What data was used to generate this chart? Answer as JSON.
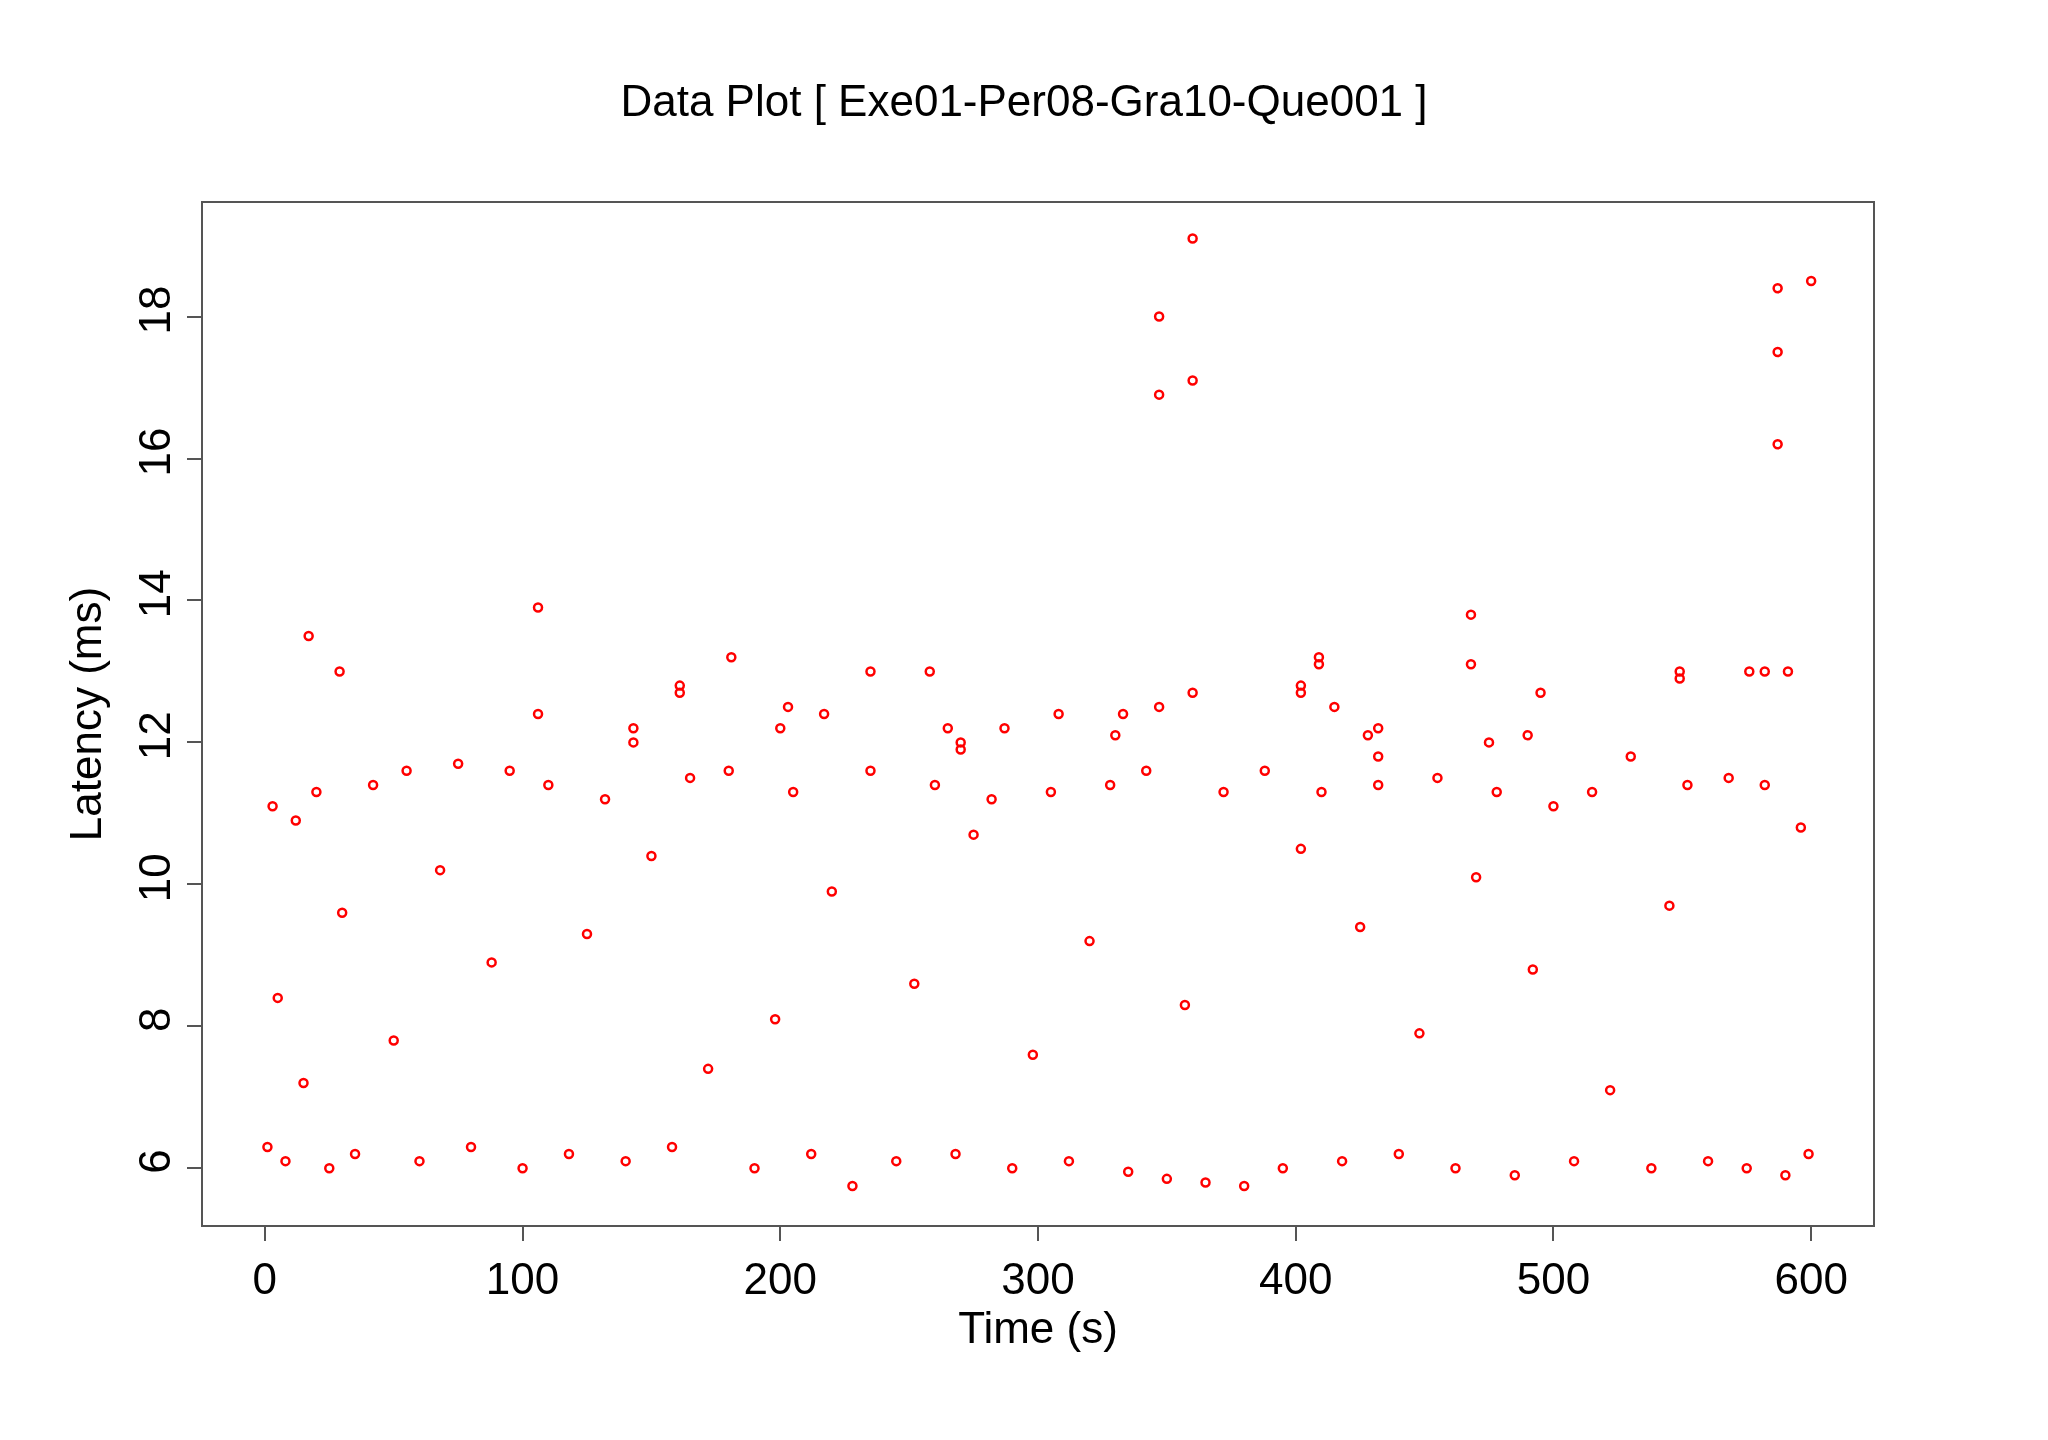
{
  "chart_data": {
    "type": "scatter",
    "title": "Data Plot [ Exe01-Per08-Gra10-Que001 ]",
    "xlabel": "Time (s)",
    "ylabel": "Latency (ms)",
    "x": [
      1,
      3,
      5,
      8,
      12,
      15,
      20,
      25,
      30,
      35,
      42,
      50,
      55,
      60,
      68,
      75,
      80,
      88,
      95,
      100,
      110,
      118,
      125,
      132,
      140,
      150,
      158,
      165,
      172,
      180,
      190,
      198,
      205,
      212,
      220,
      228,
      235,
      245,
      252,
      260,
      268,
      275,
      282,
      290,
      298,
      305,
      312,
      320,
      328,
      335,
      342,
      350,
      357,
      365,
      372,
      380,
      388,
      395,
      402,
      410,
      418,
      425,
      432,
      440,
      448,
      455,
      462,
      470,
      478,
      485,
      492,
      500,
      508,
      515,
      522,
      530,
      538,
      545,
      552,
      560,
      568,
      575,
      582,
      590,
      596,
      599,
      17,
      29,
      106,
      106,
      143,
      143,
      161,
      161,
      181,
      200,
      203,
      217,
      235,
      258,
      265,
      270,
      270,
      287,
      308,
      330,
      333,
      347,
      347,
      347,
      360,
      360,
      360,
      402,
      402,
      409,
      409,
      415,
      428,
      432,
      432,
      468,
      468,
      475,
      490,
      495,
      549,
      549,
      576,
      582,
      591,
      587,
      587,
      587,
      600
    ],
    "values": [
      6.3,
      11.1,
      8.4,
      6.1,
      10.9,
      7.2,
      11.3,
      6.0,
      9.6,
      6.2,
      11.4,
      7.8,
      11.6,
      6.1,
      10.2,
      11.7,
      6.3,
      8.9,
      11.6,
      6.0,
      11.4,
      6.2,
      9.3,
      11.2,
      6.1,
      10.4,
      6.3,
      11.5,
      7.4,
      11.6,
      6.0,
      8.1,
      11.3,
      6.2,
      9.9,
      5.75,
      11.6,
      6.1,
      8.6,
      11.4,
      6.2,
      10.7,
      11.2,
      6.0,
      7.6,
      11.3,
      6.1,
      9.2,
      11.4,
      5.95,
      11.6,
      5.85,
      8.3,
      5.8,
      11.3,
      5.75,
      11.6,
      6.0,
      10.5,
      11.3,
      6.1,
      9.4,
      11.4,
      6.2,
      7.9,
      11.5,
      6.0,
      10.1,
      11.3,
      5.9,
      8.8,
      11.1,
      6.1,
      11.3,
      7.1,
      11.8,
      6.0,
      9.7,
      11.4,
      6.1,
      11.5,
      6.0,
      11.4,
      5.9,
      10.8,
      6.2,
      13.5,
      13.0,
      13.9,
      12.4,
      12.2,
      12.0,
      12.8,
      12.7,
      13.2,
      12.2,
      12.5,
      12.4,
      13.0,
      13.0,
      12.2,
      12.0,
      11.9,
      12.2,
      12.4,
      12.1,
      12.4,
      18.0,
      16.9,
      12.5,
      19.1,
      17.1,
      12.7,
      12.8,
      12.7,
      13.2,
      13.1,
      12.5,
      12.1,
      12.2,
      11.8,
      13.8,
      13.1,
      12.0,
      12.1,
      12.7,
      13.0,
      12.9,
      13.0,
      13.0,
      13.0,
      18.4,
      17.5,
      16.2,
      18.5
    ],
    "color": "#ff0000",
    "marker": "circle",
    "xlim": [
      -24,
      624
    ],
    "ylim": [
      5.2,
      19.6
    ],
    "xticks": [
      0,
      100,
      200,
      300,
      400,
      500,
      600
    ],
    "yticks": [
      6,
      8,
      10,
      12,
      14,
      16,
      18
    ],
    "grid": false
  }
}
